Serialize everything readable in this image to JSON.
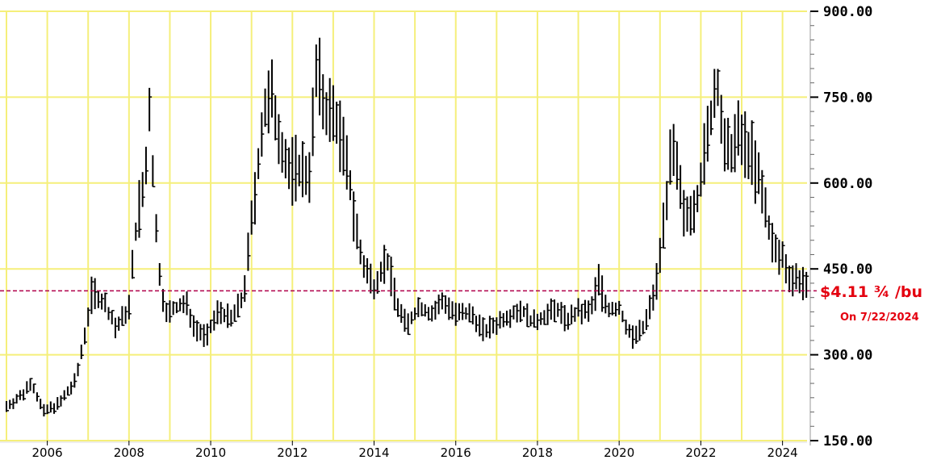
{
  "chart_data": {
    "type": "bar",
    "subtype": "ohlc-monthly-range",
    "title": "",
    "xlabel": "",
    "ylabel": "",
    "y_range": [
      150,
      900
    ],
    "y_ticks": [
      {
        "value": 150,
        "label": "150.00"
      },
      {
        "value": 300,
        "label": "300.00"
      },
      {
        "value": 450,
        "label": "450.00"
      },
      {
        "value": 600,
        "label": "600.00"
      },
      {
        "value": 750,
        "label": "750.00"
      },
      {
        "value": 900,
        "label": "900.00"
      }
    ],
    "x_range": [
      2005.0,
      2024.6
    ],
    "x_ticks": [
      {
        "value": 2006,
        "label": "2006"
      },
      {
        "value": 2008,
        "label": "2008"
      },
      {
        "value": 2010,
        "label": "2010"
      },
      {
        "value": 2012,
        "label": "2012"
      },
      {
        "value": 2014,
        "label": "2014"
      },
      {
        "value": 2016,
        "label": "2016"
      },
      {
        "value": 2018,
        "label": "2018"
      },
      {
        "value": 2020,
        "label": "2020"
      },
      {
        "value": 2022,
        "label": "2022"
      },
      {
        "value": 2024,
        "label": "2024"
      }
    ],
    "grid": true,
    "reference_line": {
      "value": 411.75,
      "style": "dashed",
      "color": "#b0004a"
    },
    "annotation": {
      "text": "$4.11 ¾ /bu",
      "subtext": "On 7/22/2024",
      "color": "#e4000f"
    },
    "colors": {
      "bars": "#000000",
      "grid": "#f5ef7a",
      "background": "#ffffff"
    },
    "anchors": [
      [
        2005.0,
        210
      ],
      [
        2005.4,
        230
      ],
      [
        2005.6,
        255
      ],
      [
        2005.9,
        200
      ],
      [
        2006.3,
        215
      ],
      [
        2006.7,
        255
      ],
      [
        2006.9,
        330
      ],
      [
        2007.1,
        410
      ],
      [
        2007.4,
        390
      ],
      [
        2007.7,
        345
      ],
      [
        2008.0,
        385
      ],
      [
        2008.2,
        540
      ],
      [
        2008.4,
        600
      ],
      [
        2008.5,
        730
      ],
      [
        2008.7,
        470
      ],
      [
        2008.9,
        370
      ],
      [
        2009.1,
        380
      ],
      [
        2009.4,
        390
      ],
      [
        2009.6,
        350
      ],
      [
        2009.9,
        330
      ],
      [
        2010.2,
        380
      ],
      [
        2010.5,
        360
      ],
      [
        2010.8,
        400
      ],
      [
        2011.0,
        530
      ],
      [
        2011.3,
        720
      ],
      [
        2011.5,
        745
      ],
      [
        2011.7,
        680
      ],
      [
        2011.9,
        620
      ],
      [
        2012.2,
        625
      ],
      [
        2012.4,
        610
      ],
      [
        2012.6,
        800
      ],
      [
        2012.8,
        730
      ],
      [
        2013.1,
        710
      ],
      [
        2013.4,
        600
      ],
      [
        2013.7,
        460
      ],
      [
        2014.0,
        420
      ],
      [
        2014.3,
        470
      ],
      [
        2014.6,
        380
      ],
      [
        2014.8,
        350
      ],
      [
        2015.1,
        385
      ],
      [
        2015.4,
        370
      ],
      [
        2015.7,
        395
      ],
      [
        2016.0,
        370
      ],
      [
        2016.4,
        370
      ],
      [
        2016.7,
        340
      ],
      [
        2017.0,
        355
      ],
      [
        2017.3,
        370
      ],
      [
        2017.6,
        380
      ],
      [
        2017.9,
        355
      ],
      [
        2018.2,
        370
      ],
      [
        2018.5,
        380
      ],
      [
        2018.7,
        360
      ],
      [
        2019.0,
        375
      ],
      [
        2019.3,
        375
      ],
      [
        2019.5,
        430
      ],
      [
        2019.7,
        380
      ],
      [
        2020.0,
        380
      ],
      [
        2020.3,
        330
      ],
      [
        2020.6,
        345
      ],
      [
        2020.9,
        420
      ],
      [
        2021.1,
        540
      ],
      [
        2021.3,
        660
      ],
      [
        2021.6,
        540
      ],
      [
        2021.9,
        570
      ],
      [
        2022.2,
        690
      ],
      [
        2022.4,
        785
      ],
      [
        2022.6,
        640
      ],
      [
        2022.9,
        680
      ],
      [
        2023.2,
        660
      ],
      [
        2023.5,
        580
      ],
      [
        2023.8,
        480
      ],
      [
        2024.0,
        470
      ],
      [
        2024.2,
        435
      ],
      [
        2024.5,
        430
      ],
      [
        2024.56,
        411.75
      ]
    ]
  },
  "price_label": "$4.11 ¾ /bu",
  "date_label": "On 7/22/2024"
}
